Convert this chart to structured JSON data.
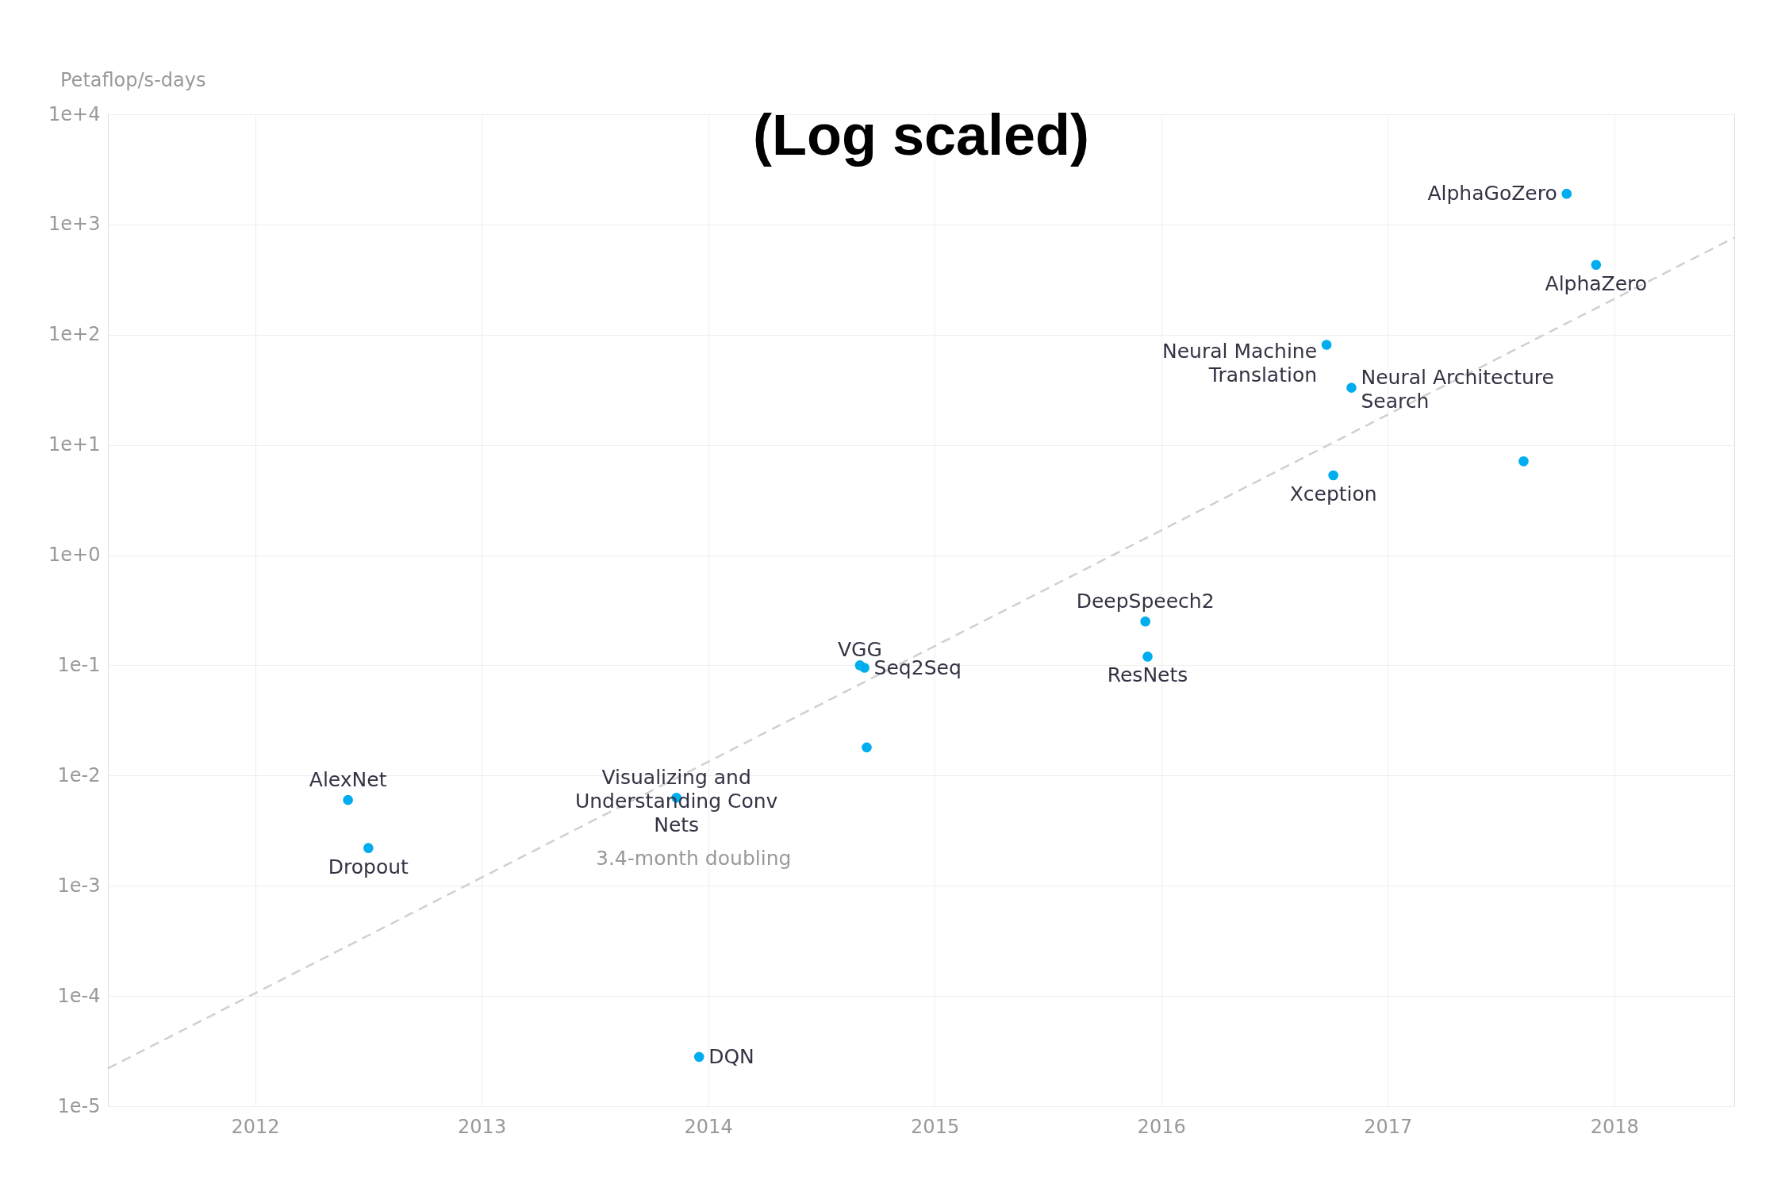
{
  "chart_data": {
    "type": "scatter",
    "title": "(Log scaled)",
    "ylabel": "Petaflop/s-days",
    "series": [
      {
        "color": "#00aeef",
        "x": [
          2012.41,
          2012.5,
          2013.96,
          2013.86,
          2014.67,
          2014.69,
          2014.7,
          2015.94,
          2015.93,
          2016.76,
          2016.73,
          2016.84,
          2017.6,
          2017.79,
          2017.92
        ],
        "values": [
          0.006,
          0.0022,
          2.8e-05,
          0.0063,
          0.1,
          0.095,
          0.018,
          0.12,
          0.25,
          5.3,
          81,
          33,
          7.1,
          1900,
          430
        ]
      },
      {
        "type": "line",
        "name": "3.4-month doubling",
        "marker": "none",
        "color": "#d0d0d0",
        "line_style": "dashed",
        "x": [
          2011.35,
          2018.53
        ],
        "values": [
          2.2e-05,
          760
        ]
      }
    ],
    "annotations": [
      {
        "text": "AlexNet",
        "x": 2012.41,
        "y": 0.006
      },
      {
        "text": "Dropout",
        "x": 2012.5,
        "y": 0.0022
      },
      {
        "text": "DQN",
        "x": 2013.96,
        "y": 2.8e-05
      },
      {
        "text": "Visualizing and\nUnderstanding Conv\nNets",
        "x": 2013.86,
        "y": 0.0063
      },
      {
        "text": "VGG",
        "x": 2014.67,
        "y": 0.1
      },
      {
        "text": "Seq2Seq",
        "x": 2014.69,
        "y": 0.095
      },
      {
        "text": "DeepSpeech2",
        "x": 2015.93,
        "y": 0.25
      },
      {
        "text": "ResNets",
        "x": 2015.94,
        "y": 0.12
      },
      {
        "text": "Xception",
        "x": 2016.76,
        "y": 5.3
      },
      {
        "text": "Neural Machine\nTranslation",
        "x": 2016.73,
        "y": 81
      },
      {
        "text": "Neural Architecture\nSearch",
        "x": 2016.84,
        "y": 33
      },
      {
        "text": "AlphaGoZero",
        "x": 2017.79,
        "y": 1900
      },
      {
        "text": "AlphaZero",
        "x": 2017.92,
        "y": 430
      }
    ],
    "xlim": [
      2011.35,
      2018.53
    ],
    "xticks": [
      2012,
      2013,
      2014,
      2015,
      2016,
      2017,
      2018
    ],
    "ylim": [
      1e-05,
      10000
    ],
    "yticks": [
      {
        "value": 1e-05,
        "label": "1e-5"
      },
      {
        "value": 0.0001,
        "label": "1e-4"
      },
      {
        "value": 0.001,
        "label": "1e-3"
      },
      {
        "value": 0.01,
        "label": "1e-2"
      },
      {
        "value": 0.1,
        "label": "1e-1"
      },
      {
        "value": 1,
        "label": "1e+0"
      },
      {
        "value": 10,
        "label": "1e+1"
      },
      {
        "value": 100,
        "label": "1e+2"
      },
      {
        "value": 1000,
        "label": "1e+3"
      },
      {
        "value": 10000,
        "label": "1e+4"
      }
    ],
    "log": "y",
    "grid": true,
    "marker": "circle"
  }
}
